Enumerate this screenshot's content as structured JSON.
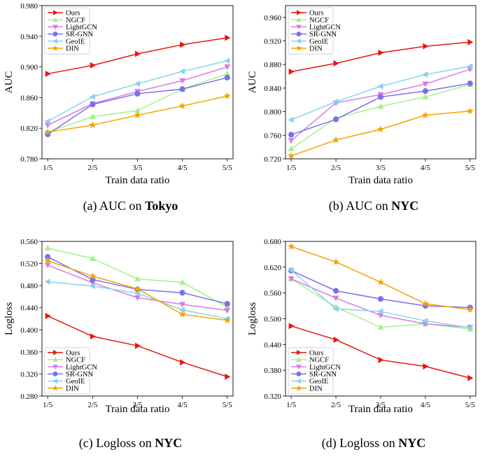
{
  "figure": {
    "series_colors": {
      "Ours": "#e8170f",
      "NGCF": "#a6f08a",
      "LightGCN": "#d77be8",
      "SR-GNN": "#7b6ff0",
      "GeoIE": "#87d3ee",
      "DIN": "#f5a300"
    },
    "series_markers": {
      "Ours": "triangle-right",
      "NGCF": "triangle-up",
      "LightGCN": "triangle-down",
      "SR-GNN": "circle",
      "GeoIE": "triangle-left",
      "DIN": "star"
    }
  },
  "chart_data": [
    {
      "type": "line",
      "caption_prefix": "(a) AUC on ",
      "caption_bold": "Tokyo",
      "xlabel": "Train data ratio",
      "ylabel": "AUC",
      "categories": [
        "1/5",
        "2/5",
        "3/5",
        "4/5",
        "5/5"
      ],
      "ylim": [
        0.78,
        0.98
      ],
      "yticks": [
        "0.780",
        "0.820",
        "0.860",
        "0.900",
        "0.940",
        "0.980"
      ],
      "legend_position": "top-left",
      "grid": false,
      "series": [
        {
          "name": "Ours",
          "values": [
            0.891,
            0.902,
            0.917,
            0.929,
            0.938
          ]
        },
        {
          "name": "NGCF",
          "values": [
            0.815,
            0.835,
            0.843,
            0.871,
            0.891
          ]
        },
        {
          "name": "LightGCN",
          "values": [
            0.824,
            0.852,
            0.868,
            0.882,
            0.9
          ]
        },
        {
          "name": "SR-GNN",
          "values": [
            0.812,
            0.851,
            0.865,
            0.871,
            0.886
          ]
        },
        {
          "name": "GeoIE",
          "values": [
            0.829,
            0.861,
            0.878,
            0.894,
            0.908
          ]
        },
        {
          "name": "DIN",
          "values": [
            0.815,
            0.824,
            0.837,
            0.849,
            0.862
          ]
        }
      ]
    },
    {
      "type": "line",
      "caption_prefix": "(b) AUC on ",
      "caption_bold": "NYC",
      "xlabel": "Train data ratio",
      "ylabel": "AUC",
      "categories": [
        "1/5",
        "2/5",
        "3/5",
        "4/5",
        "5/5"
      ],
      "ylim": [
        0.72,
        0.98
      ],
      "yticks": [
        "0.720",
        "0.760",
        "0.800",
        "0.840",
        "0.880",
        "0.920",
        "0.960"
      ],
      "legend_position": "top-left",
      "grid": false,
      "series": [
        {
          "name": "Ours",
          "values": [
            0.868,
            0.882,
            0.9,
            0.911,
            0.918
          ]
        },
        {
          "name": "NGCF",
          "values": [
            0.737,
            0.789,
            0.809,
            0.825,
            0.846
          ]
        },
        {
          "name": "LightGCN",
          "values": [
            0.751,
            0.815,
            0.829,
            0.847,
            0.872
          ]
        },
        {
          "name": "SR-GNN",
          "values": [
            0.761,
            0.787,
            0.825,
            0.835,
            0.848
          ]
        },
        {
          "name": "GeoIE",
          "values": [
            0.786,
            0.817,
            0.843,
            0.863,
            0.877
          ]
        },
        {
          "name": "DIN",
          "values": [
            0.725,
            0.752,
            0.77,
            0.794,
            0.801
          ]
        }
      ]
    },
    {
      "type": "line",
      "caption_prefix": "(c) Logloss on ",
      "caption_bold": "NYC",
      "xlabel": "Train data ratio",
      "ylabel": "Logloss",
      "categories": [
        "1/5",
        "2/5",
        "3/5",
        "4/5",
        "5/5"
      ],
      "ylim": [
        0.28,
        0.56
      ],
      "yticks": [
        "0.280",
        "0.320",
        "0.360",
        "0.400",
        "0.440",
        "0.480",
        "0.520",
        "0.560"
      ],
      "legend_position": "bottom-left",
      "grid": false,
      "series": [
        {
          "name": "Ours",
          "values": [
            0.425,
            0.388,
            0.371,
            0.341,
            0.315
          ]
        },
        {
          "name": "NGCF",
          "values": [
            0.548,
            0.529,
            0.492,
            0.486,
            0.441
          ]
        },
        {
          "name": "LightGCN",
          "values": [
            0.517,
            0.485,
            0.458,
            0.446,
            0.435
          ]
        },
        {
          "name": "SR-GNN",
          "values": [
            0.532,
            0.491,
            0.473,
            0.467,
            0.447
          ]
        },
        {
          "name": "GeoIE",
          "values": [
            0.487,
            0.479,
            0.466,
            0.436,
            0.42
          ]
        },
        {
          "name": "DIN",
          "values": [
            0.525,
            0.497,
            0.474,
            0.428,
            0.417
          ]
        }
      ]
    },
    {
      "type": "line",
      "caption_prefix": "(d) Logloss on ",
      "caption_bold": "NYC",
      "xlabel": "Train data ratio",
      "ylabel": "Logloss",
      "categories": [
        "1/5",
        "2/5",
        "3/5",
        "4/5",
        "5/5"
      ],
      "ylim": [
        0.32,
        0.68
      ],
      "yticks": [
        "0.320",
        "0.380",
        "0.440",
        "0.500",
        "0.560",
        "0.620",
        "0.680"
      ],
      "legend_position": "bottom-left",
      "grid": false,
      "series": [
        {
          "name": "Ours",
          "values": [
            0.483,
            0.451,
            0.404,
            0.389,
            0.362
          ]
        },
        {
          "name": "NGCF",
          "values": [
            0.593,
            0.527,
            0.48,
            0.488,
            0.476
          ]
        },
        {
          "name": "LightGCN",
          "values": [
            0.593,
            0.548,
            0.508,
            0.488,
            0.48
          ]
        },
        {
          "name": "SR-GNN",
          "values": [
            0.612,
            0.565,
            0.546,
            0.53,
            0.526
          ]
        },
        {
          "name": "GeoIE",
          "values": [
            0.613,
            0.523,
            0.517,
            0.495,
            0.479
          ]
        },
        {
          "name": "DIN",
          "values": [
            0.668,
            0.632,
            0.585,
            0.535,
            0.521
          ]
        }
      ]
    }
  ]
}
